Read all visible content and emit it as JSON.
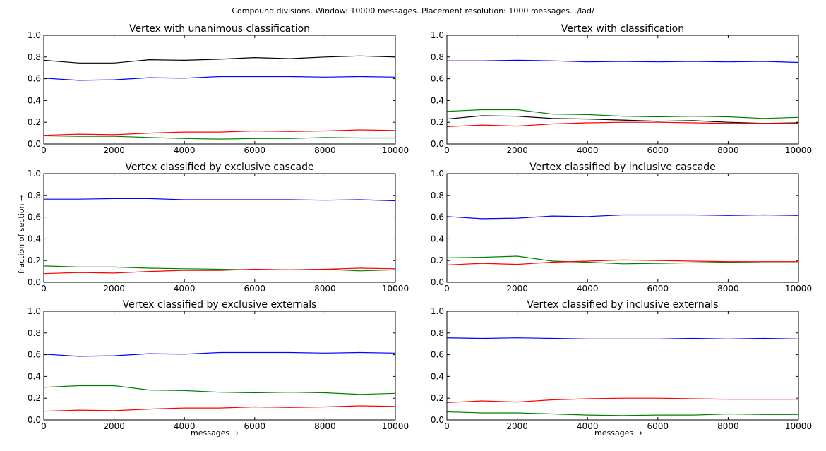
{
  "figure": {
    "suptitle": "Compound divisions. Window: 10000 messages. Placement resolution: 1000 messages. ./lad/",
    "xlabel": "messages →",
    "ylabel": "fraction of section →"
  },
  "colors": {
    "black": "#000000",
    "blue": "#0000ff",
    "green": "#008000",
    "red": "#ff0000"
  },
  "chart_data": [
    {
      "type": "line",
      "title": "Vertex with unanimous classification",
      "x": [
        0,
        1000,
        2000,
        3000,
        4000,
        5000,
        6000,
        7000,
        8000,
        9000,
        10000
      ],
      "xlim": [
        0,
        10000
      ],
      "ylim": [
        0,
        1.0
      ],
      "xticks": [
        "0",
        "2000",
        "4000",
        "6000",
        "8000",
        "10000"
      ],
      "yticks": [
        "0.0",
        "0.2",
        "0.4",
        "0.6",
        "0.8",
        "1.0"
      ],
      "grid": false,
      "series": [
        {
          "color": "#000000",
          "values": [
            0.77,
            0.745,
            0.745,
            0.775,
            0.77,
            0.78,
            0.795,
            0.785,
            0.8,
            0.81,
            0.8
          ]
        },
        {
          "color": "#0000ff",
          "values": [
            0.605,
            0.585,
            0.59,
            0.61,
            0.605,
            0.62,
            0.62,
            0.62,
            0.615,
            0.62,
            0.615
          ]
        },
        {
          "color": "#ff0000",
          "values": [
            0.08,
            0.09,
            0.085,
            0.1,
            0.11,
            0.11,
            0.12,
            0.115,
            0.12,
            0.13,
            0.125
          ]
        },
        {
          "color": "#008000",
          "values": [
            0.075,
            0.07,
            0.07,
            0.06,
            0.05,
            0.045,
            0.05,
            0.05,
            0.06,
            0.055,
            0.055
          ]
        }
      ]
    },
    {
      "type": "line",
      "title": "Vertex with classification",
      "x": [
        0,
        1000,
        2000,
        3000,
        4000,
        5000,
        6000,
        7000,
        8000,
        9000,
        10000
      ],
      "xlim": [
        0,
        10000
      ],
      "ylim": [
        0,
        1.0
      ],
      "xticks": [
        "0",
        "2000",
        "4000",
        "6000",
        "8000",
        "10000"
      ],
      "yticks": [
        "0.0",
        "0.2",
        "0.4",
        "0.6",
        "0.8",
        "1.0"
      ],
      "grid": false,
      "series": [
        {
          "color": "#0000ff",
          "values": [
            0.765,
            0.765,
            0.77,
            0.765,
            0.755,
            0.76,
            0.755,
            0.76,
            0.755,
            0.76,
            0.75
          ]
        },
        {
          "color": "#008000",
          "values": [
            0.3,
            0.315,
            0.315,
            0.275,
            0.27,
            0.255,
            0.25,
            0.255,
            0.25,
            0.235,
            0.245
          ]
        },
        {
          "color": "#000000",
          "values": [
            0.23,
            0.26,
            0.255,
            0.235,
            0.23,
            0.22,
            0.21,
            0.215,
            0.2,
            0.19,
            0.195
          ]
        },
        {
          "color": "#ff0000",
          "values": [
            0.16,
            0.175,
            0.165,
            0.185,
            0.195,
            0.2,
            0.2,
            0.195,
            0.19,
            0.19,
            0.19
          ]
        }
      ]
    },
    {
      "type": "line",
      "title": "Vertex classified by exclusive cascade",
      "x": [
        0,
        1000,
        2000,
        3000,
        4000,
        5000,
        6000,
        7000,
        8000,
        9000,
        10000
      ],
      "xlim": [
        0,
        10000
      ],
      "ylim": [
        0,
        1.0
      ],
      "xticks": [
        "0",
        "2000",
        "4000",
        "6000",
        "8000",
        "10000"
      ],
      "yticks": [
        "0.0",
        "0.2",
        "0.4",
        "0.6",
        "0.8",
        "1.0"
      ],
      "grid": false,
      "series": [
        {
          "color": "#0000ff",
          "values": [
            0.765,
            0.765,
            0.77,
            0.77,
            0.76,
            0.76,
            0.76,
            0.76,
            0.755,
            0.76,
            0.75
          ]
        },
        {
          "color": "#008000",
          "values": [
            0.15,
            0.14,
            0.14,
            0.13,
            0.125,
            0.12,
            0.115,
            0.115,
            0.12,
            0.105,
            0.115
          ]
        },
        {
          "color": "#ff0000",
          "values": [
            0.08,
            0.09,
            0.085,
            0.1,
            0.11,
            0.11,
            0.12,
            0.115,
            0.12,
            0.13,
            0.125
          ]
        }
      ]
    },
    {
      "type": "line",
      "title": "Vertex classified by inclusive cascade",
      "x": [
        0,
        1000,
        2000,
        3000,
        4000,
        5000,
        6000,
        7000,
        8000,
        9000,
        10000
      ],
      "xlim": [
        0,
        10000
      ],
      "ylim": [
        0,
        1.0
      ],
      "xticks": [
        "0",
        "2000",
        "4000",
        "6000",
        "8000",
        "10000"
      ],
      "yticks": [
        "0.0",
        "0.2",
        "0.4",
        "0.6",
        "0.8",
        "1.0"
      ],
      "grid": false,
      "series": [
        {
          "color": "#0000ff",
          "values": [
            0.605,
            0.585,
            0.59,
            0.61,
            0.605,
            0.62,
            0.62,
            0.62,
            0.615,
            0.62,
            0.615
          ]
        },
        {
          "color": "#008000",
          "values": [
            0.225,
            0.23,
            0.24,
            0.195,
            0.185,
            0.17,
            0.175,
            0.18,
            0.185,
            0.18,
            0.18
          ]
        },
        {
          "color": "#ff0000",
          "values": [
            0.16,
            0.175,
            0.165,
            0.185,
            0.195,
            0.205,
            0.2,
            0.195,
            0.19,
            0.19,
            0.19
          ]
        }
      ]
    },
    {
      "type": "line",
      "title": "Vertex classified by exclusive externals",
      "x": [
        0,
        1000,
        2000,
        3000,
        4000,
        5000,
        6000,
        7000,
        8000,
        9000,
        10000
      ],
      "xlim": [
        0,
        10000
      ],
      "ylim": [
        0,
        1.0
      ],
      "xticks": [
        "0",
        "2000",
        "4000",
        "6000",
        "8000",
        "10000"
      ],
      "yticks": [
        "0.0",
        "0.2",
        "0.4",
        "0.6",
        "0.8",
        "1.0"
      ],
      "grid": false,
      "series": [
        {
          "color": "#0000ff",
          "values": [
            0.605,
            0.585,
            0.59,
            0.61,
            0.605,
            0.62,
            0.62,
            0.62,
            0.615,
            0.62,
            0.615
          ]
        },
        {
          "color": "#008000",
          "values": [
            0.3,
            0.315,
            0.315,
            0.275,
            0.27,
            0.255,
            0.25,
            0.255,
            0.25,
            0.235,
            0.245
          ]
        },
        {
          "color": "#ff0000",
          "values": [
            0.08,
            0.09,
            0.085,
            0.1,
            0.11,
            0.11,
            0.12,
            0.115,
            0.12,
            0.13,
            0.125
          ]
        }
      ]
    },
    {
      "type": "line",
      "title": "Vertex classified by inclusive externals",
      "x": [
        0,
        1000,
        2000,
        3000,
        4000,
        5000,
        6000,
        7000,
        8000,
        9000,
        10000
      ],
      "xlim": [
        0,
        10000
      ],
      "ylim": [
        0,
        1.0
      ],
      "xticks": [
        "0",
        "2000",
        "4000",
        "6000",
        "8000",
        "10000"
      ],
      "yticks": [
        "0.0",
        "0.2",
        "0.4",
        "0.6",
        "0.8",
        "1.0"
      ],
      "grid": false,
      "series": [
        {
          "color": "#0000ff",
          "values": [
            0.755,
            0.75,
            0.755,
            0.75,
            0.745,
            0.745,
            0.745,
            0.75,
            0.745,
            0.75,
            0.745
          ]
        },
        {
          "color": "#ff0000",
          "values": [
            0.16,
            0.175,
            0.165,
            0.185,
            0.195,
            0.2,
            0.2,
            0.195,
            0.19,
            0.19,
            0.19
          ]
        },
        {
          "color": "#008000",
          "values": [
            0.075,
            0.065,
            0.065,
            0.055,
            0.045,
            0.04,
            0.045,
            0.045,
            0.055,
            0.05,
            0.05
          ]
        }
      ]
    }
  ]
}
